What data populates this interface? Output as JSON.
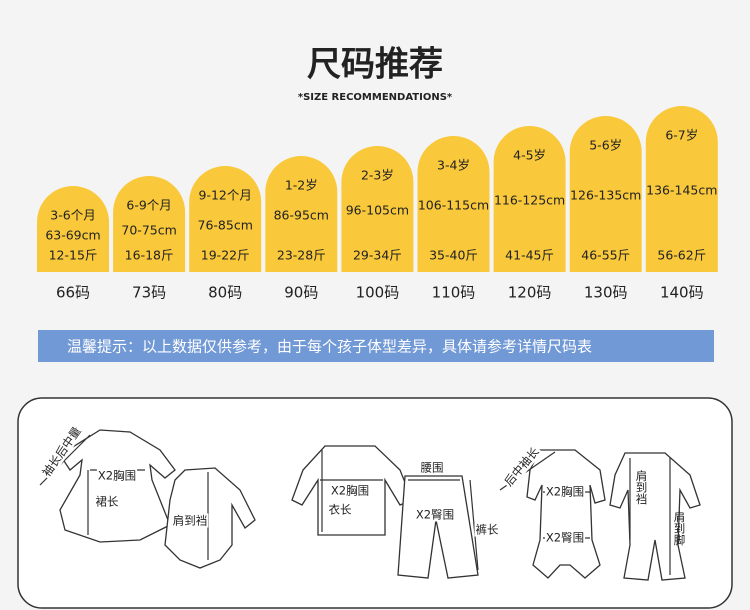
{
  "header": {
    "title": "尺码推荐",
    "subtitle": "*SIZE RECOMMENDATIONS*"
  },
  "sizes": [
    {
      "age": "3-6个月",
      "height": "63-69cm",
      "weight": "12-15斤",
      "size": "66码"
    },
    {
      "age": "6-9个月",
      "height": "70-75cm",
      "weight": "16-18斤",
      "size": "73码"
    },
    {
      "age": "9-12个月",
      "height": "76-85cm",
      "weight": "19-22斤",
      "size": "80码"
    },
    {
      "age": "1-2岁",
      "height": "86-95cm",
      "weight": "23-28斤",
      "size": "90码"
    },
    {
      "age": "2-3岁",
      "height": "96-105cm",
      "weight": "29-34斤",
      "size": "100码"
    },
    {
      "age": "3-4岁",
      "height": "106-115cm",
      "weight": "35-40斤",
      "size": "110码"
    },
    {
      "age": "4-5岁",
      "height": "116-125cm",
      "weight": "41-45斤",
      "size": "120码"
    },
    {
      "age": "5-6岁",
      "height": "126-135cm",
      "weight": "46-55斤",
      "size": "130码"
    },
    {
      "age": "6-7岁",
      "height": "136-145cm",
      "weight": "56-62斤",
      "size": "140码"
    }
  ],
  "notice": "温馨提示：以上数据仅供参考，由于每个孩子体型差异，具体请参考详情尺码表",
  "diagram": {
    "labels": [
      "袖长后中量",
      "X2胸围",
      "裙长",
      "肩到裆",
      "腰围",
      "X2胸围",
      "衣长",
      "X2臀围",
      "裤长",
      "后中袖长",
      "X2胸围",
      "X2臀围",
      "肩到裆",
      "肩到脚"
    ]
  }
}
